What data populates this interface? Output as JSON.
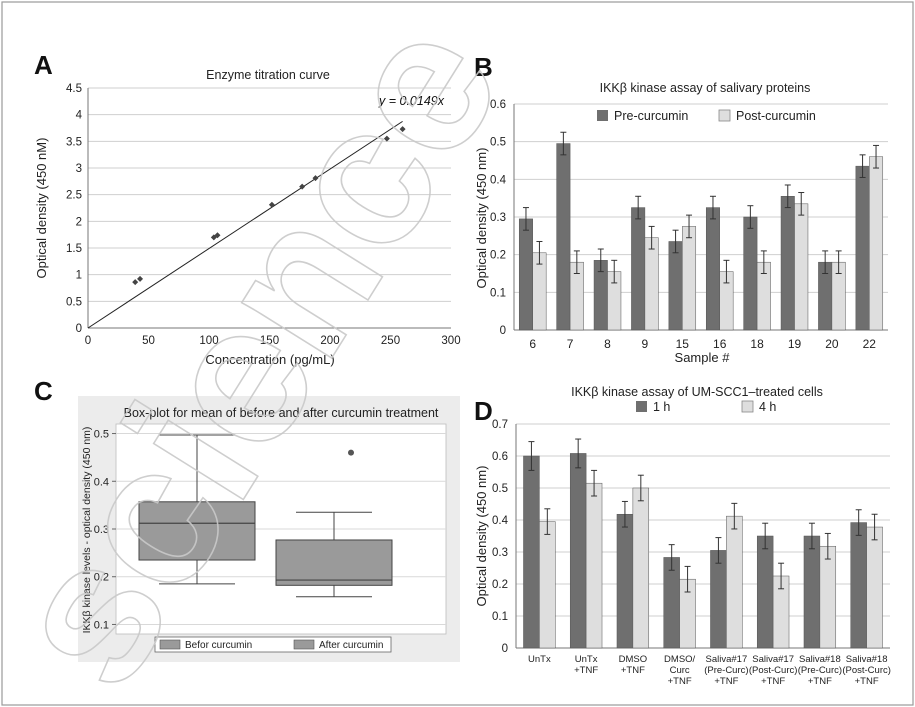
{
  "figure": {
    "panel_letters": {
      "a": "A",
      "b": "B",
      "c": "C",
      "d": "D"
    },
    "watermark_text": "science"
  },
  "chart_data": [
    {
      "panel": "A",
      "type": "scatter",
      "title": "Enzyme titration curve",
      "xlabel": "Concentration (pg/mL)",
      "ylabel": "Optical density (450 nM)",
      "xlim": [
        0,
        300
      ],
      "ylim": [
        0,
        4.5
      ],
      "xticks": [
        "0",
        "50",
        "100",
        "150",
        "200",
        "250",
        "300"
      ],
      "yticks": [
        "0",
        "0.5",
        "1",
        "1.5",
        "2",
        "2.5",
        "3",
        "3.5",
        "4",
        "4.5"
      ],
      "grid": true,
      "equation": "y = 0.0149x",
      "fit_slope": 0.0149,
      "fit_range": [
        0,
        260
      ],
      "points": [
        [
          39,
          0.86
        ],
        [
          43,
          0.92
        ],
        [
          104,
          1.7
        ],
        [
          107,
          1.74
        ],
        [
          152,
          2.31
        ],
        [
          177,
          2.65
        ],
        [
          188,
          2.81
        ],
        [
          247,
          3.55
        ],
        [
          260,
          3.73
        ]
      ]
    },
    {
      "panel": "B",
      "type": "bar",
      "title": "IKKβ kinase assay of salivary proteins",
      "xlabel": "Sample #",
      "ylabel": "Optical density (450 nm)",
      "ylim": [
        0,
        0.6
      ],
      "yticks": [
        "0",
        "0.1",
        "0.2",
        "0.3",
        "0.4",
        "0.5",
        "0.6"
      ],
      "grid": true,
      "legend_position": "top",
      "categories": [
        "6",
        "7",
        "8",
        "9",
        "15",
        "16",
        "18",
        "19",
        "20",
        "22"
      ],
      "series": [
        {
          "name": "Pre-curcumin",
          "color": "#6f6f6f",
          "values": [
            0.295,
            0.495,
            0.185,
            0.325,
            0.235,
            0.325,
            0.3,
            0.355,
            0.18,
            0.435
          ],
          "errors": [
            0.03,
            0.03,
            0.03,
            0.03,
            0.03,
            0.03,
            0.03,
            0.03,
            0.03,
            0.03
          ]
        },
        {
          "name": "Post-curcumin",
          "color": "#dedede",
          "values": [
            0.205,
            0.18,
            0.155,
            0.245,
            0.275,
            0.155,
            0.18,
            0.335,
            0.18,
            0.46
          ],
          "errors": [
            0.03,
            0.03,
            0.03,
            0.03,
            0.03,
            0.03,
            0.03,
            0.03,
            0.03,
            0.03
          ]
        }
      ]
    },
    {
      "panel": "C",
      "type": "box",
      "title": "Box-plot for mean of before and after curcumin treatment",
      "ylabel": "IKKβ kinase levels - optical density (450 nm)",
      "ylim": [
        0.08,
        0.52
      ],
      "yticks": [
        "0.1",
        "0.2",
        "0.3",
        "0.4",
        "0.5"
      ],
      "grid": true,
      "legend_position": "bottom",
      "boxes": [
        {
          "name": "Befor curcumin",
          "min": 0.185,
          "q1": 0.235,
          "median": 0.312,
          "q3": 0.357,
          "max": 0.497,
          "outliers": []
        },
        {
          "name": "After curcumin",
          "min": 0.158,
          "q1": 0.182,
          "median": 0.193,
          "q3": 0.277,
          "max": 0.335,
          "outliers": [
            0.46
          ]
        }
      ]
    },
    {
      "panel": "D",
      "type": "bar",
      "title": "IKKβ kinase assay of UM-SCC1–treated cells",
      "ylabel": "Optical density (450 nm)",
      "ylim": [
        0,
        0.7
      ],
      "yticks": [
        "0",
        "0.1",
        "0.2",
        "0.3",
        "0.4",
        "0.5",
        "0.6",
        "0.7"
      ],
      "grid": true,
      "legend_position": "top",
      "categories": [
        [
          "UnTx"
        ],
        [
          "UnTx",
          "+TNF"
        ],
        [
          "DMSO",
          "+TNF"
        ],
        [
          "DMSO/",
          "Curc",
          "+TNF"
        ],
        [
          "Saliva#17",
          "(Pre-Curc)",
          "+TNF"
        ],
        [
          "Saliva#17",
          "(Post-Curc)",
          "+TNF"
        ],
        [
          "Saliva#18",
          "(Pre-Curc)",
          "+TNF"
        ],
        [
          "Saliva#18",
          "(Post-Curc)",
          "+TNF"
        ]
      ],
      "series": [
        {
          "name": "1 h",
          "color": "#6f6f6f",
          "values": [
            0.6,
            0.608,
            0.418,
            0.283,
            0.305,
            0.35,
            0.35,
            0.392
          ],
          "errors": [
            0.045,
            0.045,
            0.04,
            0.04,
            0.04,
            0.04,
            0.04,
            0.04
          ]
        },
        {
          "name": "4 h",
          "color": "#dedede",
          "values": [
            0.395,
            0.515,
            0.5,
            0.215,
            0.412,
            0.225,
            0.318,
            0.378
          ],
          "errors": [
            0.04,
            0.04,
            0.04,
            0.04,
            0.04,
            0.04,
            0.04,
            0.04
          ]
        }
      ]
    }
  ]
}
